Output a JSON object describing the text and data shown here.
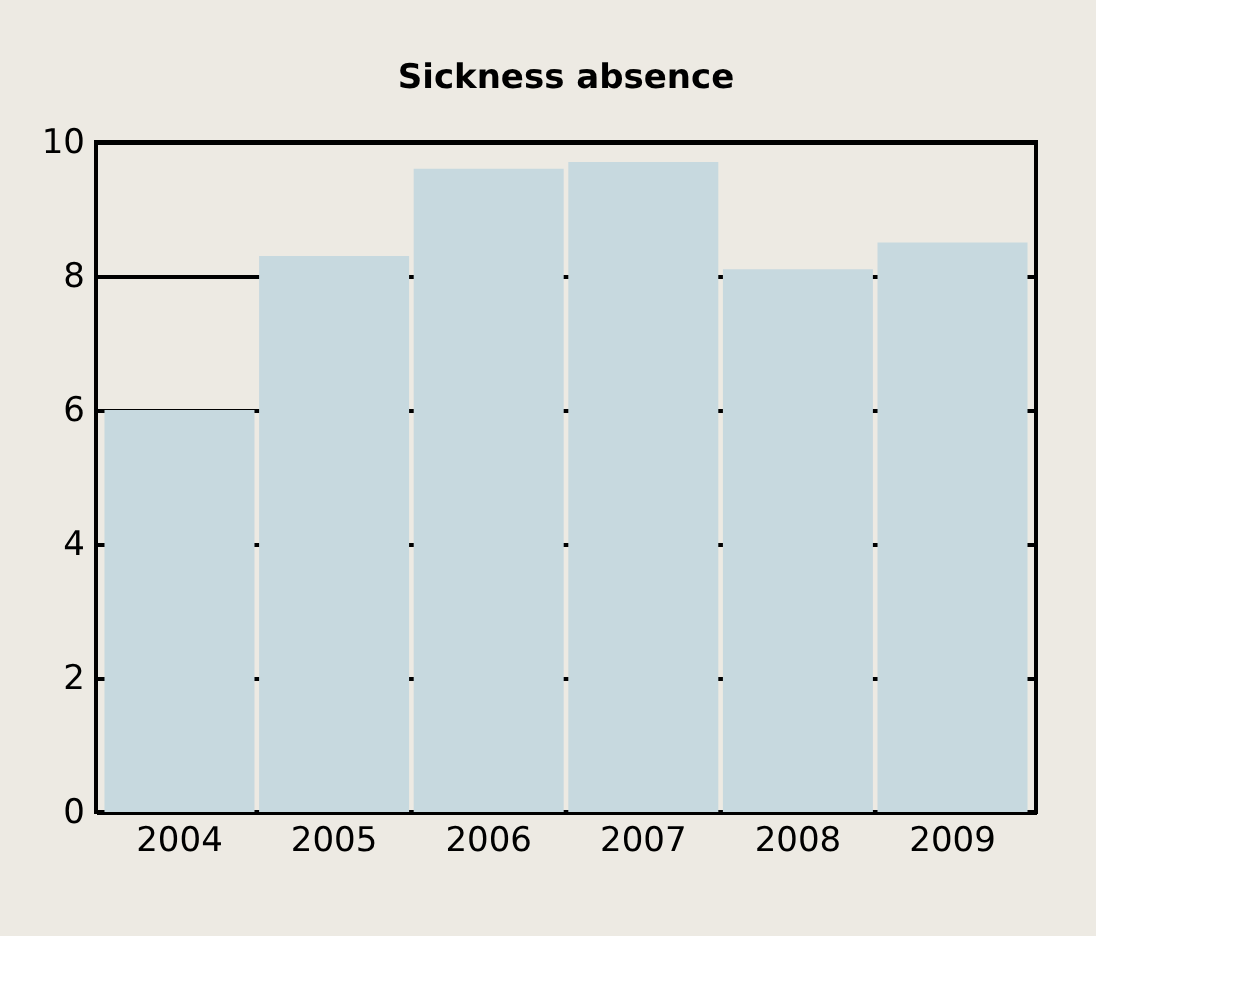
{
  "chart_data": {
    "type": "bar",
    "title": "Sickness absence",
    "categories": [
      "2004",
      "2005",
      "2006",
      "2007",
      "2008",
      "2009"
    ],
    "values": [
      6.0,
      8.3,
      9.6,
      9.7,
      8.1,
      8.5
    ],
    "color": "#c7d9df",
    "ylim": [
      0,
      10
    ],
    "yticks": [
      0,
      2,
      4,
      6,
      8,
      10
    ],
    "grid": "y"
  }
}
